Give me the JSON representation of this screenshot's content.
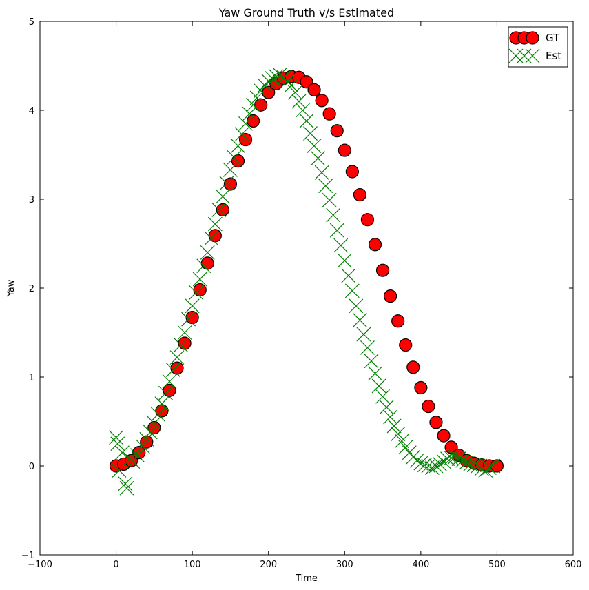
{
  "chart_data": {
    "type": "scatter",
    "title": "Yaw Ground Truth v/s Estimated",
    "xlabel": "Time",
    "ylabel": "Yaw",
    "xlim": [
      -100,
      600
    ],
    "ylim": [
      -1,
      5
    ],
    "x_ticks": [
      -100,
      0,
      100,
      200,
      300,
      400,
      500,
      600
    ],
    "y_ticks": [
      -1,
      0,
      1,
      2,
      3,
      4,
      5
    ],
    "x_tick_labels": [
      "−100",
      "0",
      "100",
      "200",
      "300",
      "400",
      "500",
      "600"
    ],
    "y_tick_labels": [
      "−1",
      "0",
      "1",
      "2",
      "3",
      "4",
      "5"
    ],
    "grid": false,
    "legend_position": "top-right",
    "series": [
      {
        "name": "GT",
        "marker": "circle",
        "color": "#ff0000",
        "edge_color": "#000000",
        "x": [
          0,
          10,
          20,
          30,
          40,
          50,
          60,
          70,
          80,
          90,
          100,
          110,
          120,
          130,
          140,
          150,
          160,
          170,
          180,
          190,
          200,
          210,
          220,
          230,
          240,
          250,
          260,
          270,
          280,
          290,
          300,
          310,
          320,
          330,
          340,
          350,
          360,
          370,
          380,
          390,
          400,
          410,
          420,
          430,
          440,
          450,
          460,
          470,
          480,
          490,
          500
        ],
        "y": [
          0.0,
          0.02,
          0.06,
          0.15,
          0.27,
          0.43,
          0.62,
          0.85,
          1.1,
          1.38,
          1.67,
          1.98,
          2.28,
          2.59,
          2.88,
          3.17,
          3.43,
          3.67,
          3.88,
          4.06,
          4.2,
          4.3,
          4.36,
          4.38,
          4.37,
          4.32,
          4.23,
          4.11,
          3.96,
          3.77,
          3.55,
          3.31,
          3.05,
          2.77,
          2.49,
          2.2,
          1.91,
          1.63,
          1.36,
          1.11,
          0.88,
          0.67,
          0.49,
          0.34,
          0.21,
          0.12,
          0.06,
          0.03,
          0.01,
          0.0,
          0.0
        ]
      },
      {
        "name": "Est",
        "marker": "x",
        "color": "#008000",
        "x": [
          0,
          2,
          4,
          8,
          12,
          14,
          18,
          22,
          28,
          35,
          40,
          45,
          50,
          55,
          60,
          65,
          70,
          75,
          80,
          85,
          90,
          95,
          100,
          105,
          110,
          115,
          120,
          125,
          130,
          135,
          140,
          145,
          150,
          155,
          160,
          165,
          170,
          175,
          180,
          185,
          190,
          195,
          200,
          205,
          210,
          215,
          220,
          225,
          230,
          235,
          240,
          245,
          250,
          255,
          260,
          265,
          270,
          275,
          280,
          285,
          290,
          295,
          300,
          305,
          310,
          315,
          320,
          325,
          330,
          335,
          340,
          345,
          350,
          355,
          360,
          365,
          370,
          375,
          380,
          385,
          390,
          395,
          400,
          405,
          410,
          415,
          420,
          425,
          430,
          435,
          440,
          445,
          450,
          455,
          460,
          465,
          470,
          475,
          480,
          485,
          490,
          495
        ],
        "y": [
          0.32,
          0.25,
          -0.05,
          0.15,
          -0.2,
          -0.25,
          0.08,
          0.05,
          0.12,
          0.22,
          0.3,
          0.38,
          0.48,
          0.58,
          0.7,
          0.82,
          0.95,
          1.08,
          1.22,
          1.36,
          1.5,
          1.65,
          1.8,
          1.95,
          2.1,
          2.25,
          2.4,
          2.56,
          2.72,
          2.88,
          3.03,
          3.18,
          3.33,
          3.47,
          3.6,
          3.73,
          3.85,
          3.96,
          4.06,
          4.14,
          4.22,
          4.28,
          4.33,
          4.36,
          4.38,
          4.4,
          4.37,
          4.33,
          4.28,
          4.2,
          4.1,
          4.0,
          3.88,
          3.74,
          3.6,
          3.46,
          3.3,
          3.15,
          2.99,
          2.82,
          2.65,
          2.48,
          2.31,
          2.14,
          1.97,
          1.8,
          1.64,
          1.48,
          1.33,
          1.18,
          1.04,
          0.9,
          0.78,
          0.66,
          0.55,
          0.45,
          0.36,
          0.28,
          0.21,
          0.15,
          0.1,
          0.06,
          0.03,
          0.01,
          0.0,
          -0.02,
          0.0,
          0.02,
          0.05,
          0.08,
          0.09,
          0.1,
          0.08,
          0.06,
          0.04,
          0.02,
          0.01,
          0.0,
          -0.03,
          -0.05,
          -0.02,
          0.0
        ]
      }
    ]
  }
}
